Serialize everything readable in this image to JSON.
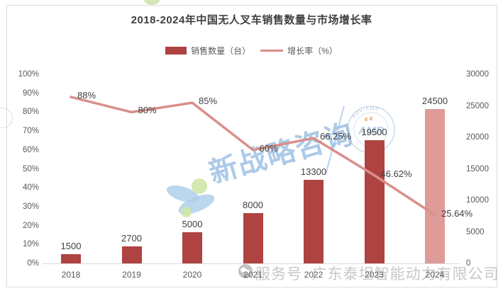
{
  "chart_data": {
    "type": "combo-bar-line",
    "title": "2018-2024年中国无人叉车销售数量与市场增长率",
    "categories": [
      "2018",
      "2019",
      "2020",
      "2021",
      "2022",
      "2023",
      "2024"
    ],
    "series": [
      {
        "name": "销售数量（台）",
        "type": "bar",
        "axis": "right",
        "values": [
          1500,
          2700,
          5000,
          8000,
          13300,
          19500,
          24500
        ],
        "labels": [
          "1500",
          "2700",
          "5000",
          "8000",
          "13300",
          "19500",
          "24500"
        ]
      },
      {
        "name": "增长率（%）",
        "type": "line",
        "axis": "left",
        "values": [
          88,
          80,
          85,
          60,
          66.25,
          46.62,
          25.64
        ],
        "labels": [
          "88%",
          "80%",
          "85%",
          "60%",
          "66.25%",
          "46.62%",
          "25.64%"
        ]
      }
    ],
    "left_axis": {
      "min": 0,
      "max": 100,
      "step": 10,
      "ticks": [
        "0%",
        "10%",
        "20%",
        "30%",
        "40%",
        "50%",
        "60%",
        "70%",
        "80%",
        "90%",
        "100%"
      ]
    },
    "right_axis": {
      "min": 0,
      "max": 30000,
      "step": 5000,
      "ticks": [
        "0",
        "5000",
        "10000",
        "15000",
        "20000",
        "25000",
        "30000"
      ]
    },
    "legend": [
      {
        "label": "销售数量（台）"
      },
      {
        "label": "增长率（%）"
      }
    ],
    "colors": {
      "bar": "#AE4341",
      "bar_last": "#DE9B98",
      "line": "#D98F8B",
      "axis_line": "#D9D9D9"
    },
    "grid": false,
    "legend_position": "top-center"
  },
  "watermarks": {
    "brand_text": "新战略咨询",
    "seal_center_text": "AMR",
    "seal_rim_text": "AGV/AMR",
    "footer_label": "服务号",
    "footer_company": "广东泰坦智能动力有限公司"
  }
}
